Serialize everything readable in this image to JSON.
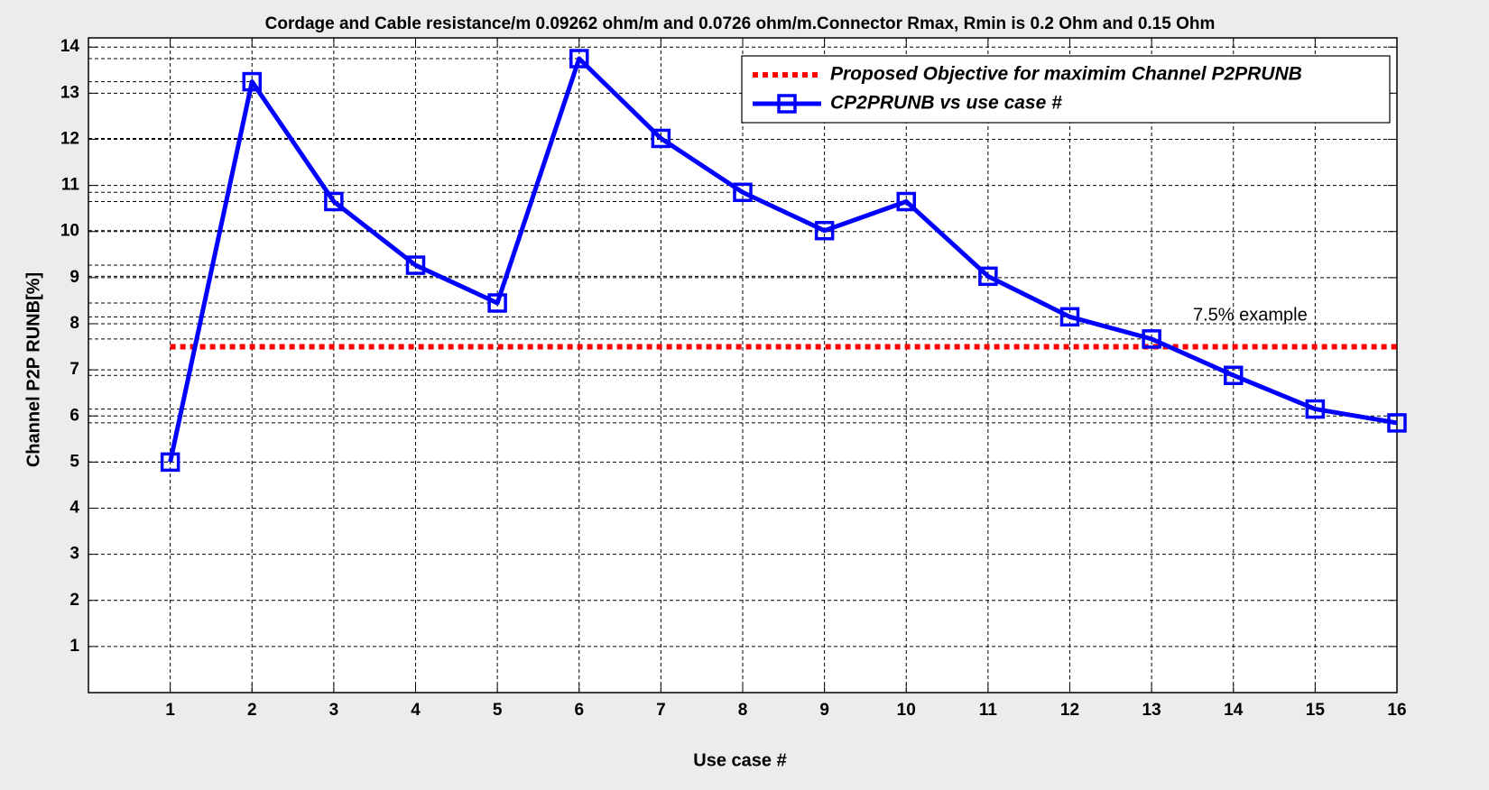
{
  "chart_data": {
    "type": "line",
    "title": "Cordage and Cable resistance/m 0.09262 ohm/m and 0.0726 ohm/m.Connector Rmax, Rmin is 0.2 Ohm and 0.15 Ohm",
    "x_label": "Use case #",
    "y_label": "Channel P2P RUNB[%]",
    "x": [
      1,
      2,
      3,
      4,
      5,
      6,
      7,
      8,
      9,
      10,
      11,
      12,
      13,
      14,
      15,
      16
    ],
    "series": [
      {
        "name": "Proposed Objective for maximim Channel P2PRUNB",
        "color": "#ff0000",
        "style": "dotted",
        "values": [
          7.5,
          7.5,
          7.5,
          7.5,
          7.5,
          7.5,
          7.5,
          7.5,
          7.5,
          7.5,
          7.5,
          7.5,
          7.5,
          7.5,
          7.5,
          7.5
        ]
      },
      {
        "name": "CP2PRUNB vs use case #",
        "color": "#0000ff",
        "style": "solid",
        "marker": "square",
        "values": [
          5.0,
          13.25,
          10.65,
          9.27,
          8.45,
          13.75,
          12.02,
          10.85,
          10.02,
          10.65,
          9.03,
          8.15,
          7.67,
          6.88,
          6.15,
          5.85
        ]
      }
    ],
    "annotation": "7.5% example",
    "xlim": [
      0,
      16
    ],
    "xticks": [
      1,
      2,
      3,
      4,
      5,
      6,
      7,
      8,
      9,
      10,
      11,
      12,
      13,
      14,
      15,
      16
    ],
    "ylim": [
      0,
      14.2
    ],
    "yticks": [
      1,
      2,
      3,
      4,
      5,
      6,
      7,
      8,
      9,
      10,
      11,
      12,
      13,
      14
    ],
    "grid": true,
    "value_guides": true,
    "legend": "upper right"
  }
}
